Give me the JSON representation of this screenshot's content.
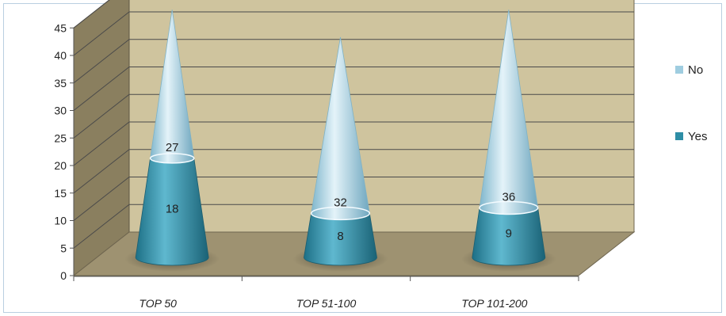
{
  "chart_data": {
    "type": "bar",
    "shape": "cone",
    "stacked": true,
    "categories": [
      "TOP 50",
      "TOP 51-100",
      "TOP 101-200"
    ],
    "series": [
      {
        "name": "Yes",
        "values": [
          18,
          8,
          9
        ],
        "color": "#2e8ea6"
      },
      {
        "name": "No",
        "values": [
          27,
          32,
          36
        ],
        "color": "#9fcde0"
      }
    ],
    "ylim": [
      0,
      45
    ],
    "yticks": [
      "0",
      "5",
      "10",
      "15",
      "20",
      "25",
      "30",
      "35",
      "40",
      "45"
    ],
    "grid": true,
    "legend_position": "right",
    "wall_color": "#cfc49e",
    "floor_color": "#9e9271"
  }
}
